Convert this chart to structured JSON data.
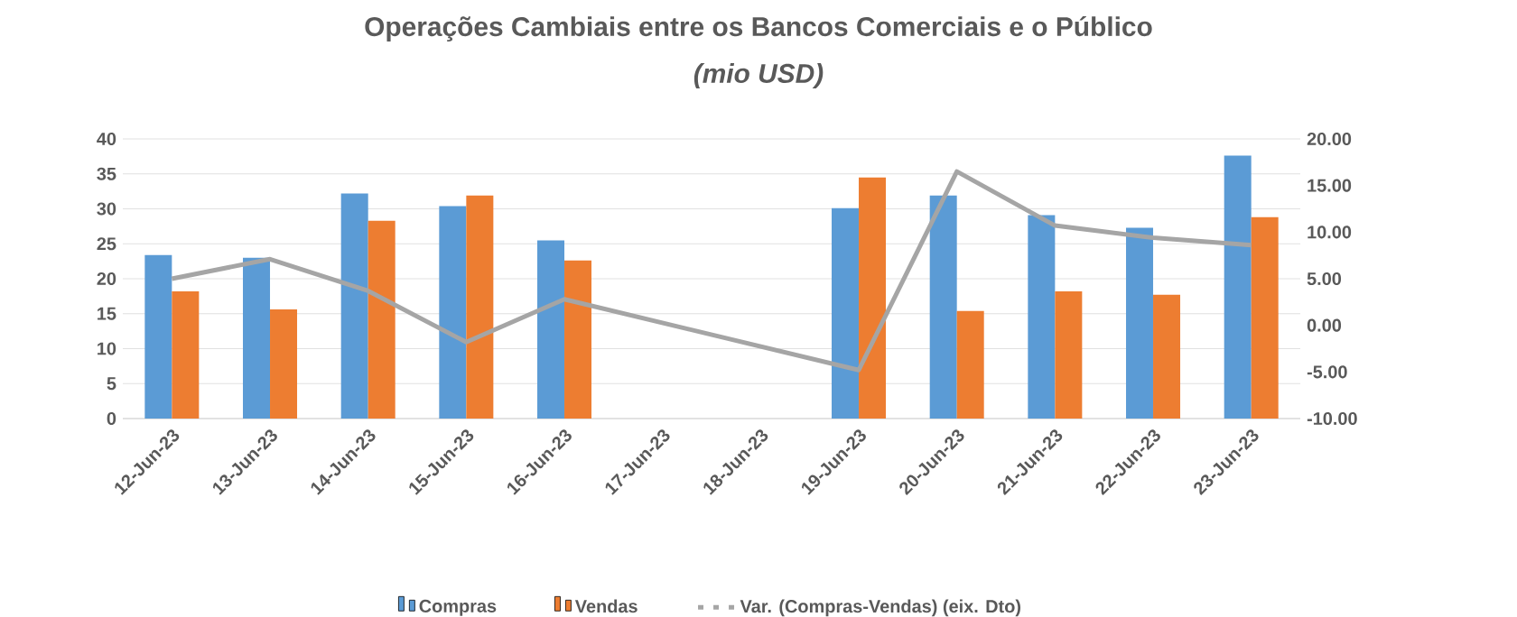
{
  "chart_data": {
    "type": "bar",
    "title": "Operações Cambiais entre os Bancos Comerciais e o Público",
    "subtitle": "(mio USD)",
    "categories": [
      "12-Jun-23",
      "13-Jun-23",
      "14-Jun-23",
      "15-Jun-23",
      "16-Jun-23",
      "17-Jun-23",
      "18-Jun-23",
      "19-Jun-23",
      "20-Jun-23",
      "21-Jun-23",
      "22-Jun-23",
      "23-Jun-23"
    ],
    "series": [
      {
        "name": "Compras",
        "color": "#5b9bd5",
        "values": [
          23.4,
          23.0,
          32.2,
          30.4,
          25.5,
          null,
          null,
          30.1,
          31.9,
          29.1,
          27.3,
          37.6
        ]
      },
      {
        "name": "Vendas",
        "color": "#ed7d31",
        "values": [
          18.2,
          15.6,
          28.3,
          31.9,
          22.6,
          null,
          null,
          34.5,
          15.4,
          18.2,
          17.7,
          28.8
        ]
      },
      {
        "name": "Var. (Compras-Vendas) (eix. Dto)",
        "type": "line",
        "axis": "y2",
        "color": "#a5a5a5",
        "line_style": "solid",
        "marker": "none",
        "values": [
          5.0,
          7.1,
          3.7,
          -1.8,
          2.8,
          null,
          null,
          -4.8,
          16.5,
          10.7,
          9.4,
          8.6
        ]
      }
    ],
    "ylim": [
      0,
      40
    ],
    "yticks": [
      0,
      5,
      10,
      15,
      20,
      25,
      30,
      35,
      40
    ],
    "y2lim": [
      -10,
      20
    ],
    "y2ticks": [
      {
        "value": -10,
        "label": "-10.00"
      },
      {
        "value": -5,
        "label": "-5.00"
      },
      {
        "value": 0,
        "label": "0.00"
      },
      {
        "value": 5,
        "label": "5.00"
      },
      {
        "value": 10,
        "label": "10.00"
      },
      {
        "value": 15,
        "label": "15.00"
      },
      {
        "value": 20,
        "label": "20.00"
      }
    ],
    "grid": "y",
    "legend": "bottom"
  }
}
